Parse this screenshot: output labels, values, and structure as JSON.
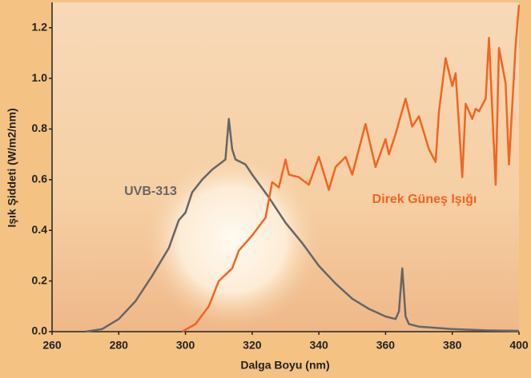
{
  "chart_data": {
    "type": "line",
    "xlabel": "Dalga Boyu (nm)",
    "ylabel": "Işık Şiddeti (W/m2/nm)",
    "xlim": [
      260,
      400
    ],
    "ylim": [
      0,
      1.3
    ],
    "xticks": [
      260,
      280,
      300,
      320,
      340,
      360,
      380,
      400
    ],
    "yticks": [
      {
        "value": 0,
        "label": "0.0"
      },
      0.2,
      0.4,
      0.6,
      0.8,
      {
        "value": 1,
        "label": "1.0"
      },
      1.2
    ],
    "annotations": [
      "UVB-313",
      "Direk Güneş Işığı"
    ],
    "series": [
      {
        "name": "UVB-313",
        "color": "#666666",
        "x": [
          270,
          275,
          280,
          285,
          290,
          295,
          298,
          300,
          302,
          305,
          308,
          311,
          312,
          313,
          314,
          315,
          318,
          320,
          325,
          330,
          335,
          340,
          345,
          350,
          355,
          360,
          363,
          364,
          365,
          366,
          367,
          370,
          380,
          390,
          400
        ],
        "values": [
          0,
          0.01,
          0.05,
          0.12,
          0.22,
          0.33,
          0.44,
          0.47,
          0.55,
          0.6,
          0.64,
          0.67,
          0.68,
          0.84,
          0.72,
          0.68,
          0.66,
          0.62,
          0.53,
          0.43,
          0.35,
          0.26,
          0.19,
          0.13,
          0.09,
          0.06,
          0.05,
          0.08,
          0.25,
          0.06,
          0.03,
          0.02,
          0.01,
          0.005,
          0.003
        ]
      },
      {
        "name": "Direk Güneş Işığı",
        "color": "#f26522",
        "x": [
          299,
          303,
          307,
          310,
          314,
          316,
          320,
          324,
          326,
          328,
          330,
          331,
          334,
          337,
          340,
          343,
          345,
          348,
          350,
          354,
          357,
          360,
          361,
          363,
          366,
          368,
          370,
          373,
          375,
          376,
          378,
          380,
          381,
          383,
          384,
          386,
          387,
          388,
          390,
          391,
          393,
          394,
          396,
          397,
          399,
          400
        ],
        "values": [
          0,
          0.03,
          0.1,
          0.2,
          0.25,
          0.32,
          0.38,
          0.45,
          0.59,
          0.57,
          0.68,
          0.62,
          0.61,
          0.58,
          0.69,
          0.56,
          0.65,
          0.69,
          0.62,
          0.82,
          0.65,
          0.76,
          0.7,
          0.78,
          0.92,
          0.81,
          0.85,
          0.72,
          0.67,
          0.87,
          1.08,
          0.97,
          1.02,
          0.61,
          0.9,
          0.84,
          0.88,
          0.87,
          0.92,
          1.16,
          0.58,
          1.12,
          0.98,
          0.66,
          1.13,
          1.29
        ]
      }
    ]
  }
}
